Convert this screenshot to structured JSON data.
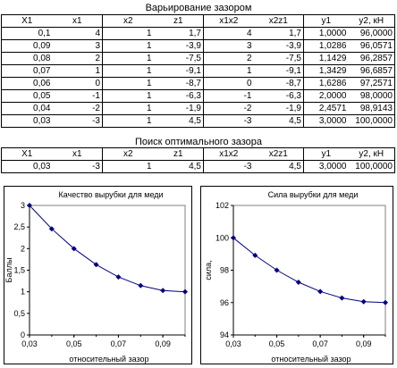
{
  "table1": {
    "title": "Варьирование зазором",
    "headers": [
      "X1",
      "x1",
      "x2",
      "z1",
      "x1x2",
      "x2z1",
      "y1",
      "y2, кН"
    ],
    "rows": [
      [
        "0,1",
        "4",
        "1",
        "1,7",
        "4",
        "1,7",
        "1,0000",
        "96,0000"
      ],
      [
        "0,09",
        "3",
        "1",
        "-3,9",
        "3",
        "-3,9",
        "1,0286",
        "96,0571"
      ],
      [
        "0,08",
        "2",
        "1",
        "-7,5",
        "2",
        "-7,5",
        "1,1429",
        "96,2857"
      ],
      [
        "0,07",
        "1",
        "1",
        "-9,1",
        "1",
        "-9,1",
        "1,3429",
        "96,6857"
      ],
      [
        "0,06",
        "0",
        "1",
        "-8,7",
        "0",
        "-8,7",
        "1,6286",
        "97,2571"
      ],
      [
        "0,05",
        "-1",
        "1",
        "-6,3",
        "-1",
        "-6,3",
        "2,0000",
        "98,0000"
      ],
      [
        "0,04",
        "-2",
        "1",
        "-1,9",
        "-2",
        "-1,9",
        "2,4571",
        "98,9143"
      ],
      [
        "0,03",
        "-3",
        "1",
        "4,5",
        "-3",
        "4,5",
        "3,0000",
        "100,0000"
      ]
    ]
  },
  "table2": {
    "title": "Поиск оптимального зазора",
    "headers": [
      "X1",
      "x1",
      "x2",
      "z1",
      "x1x2",
      "x2z1",
      "y1",
      "y2, кН"
    ],
    "rows": [
      [
        "0,03",
        "-3",
        "1",
        "4,5",
        "-3",
        "4,5",
        "3,0000",
        "100,0000"
      ]
    ]
  },
  "chart_data": [
    {
      "type": "line",
      "title": "Качество вырубки для меди",
      "xlabel": "относительный зазор",
      "ylabel": "Баллы",
      "xlim": [
        0.03,
        0.1
      ],
      "ylim": [
        0,
        3
      ],
      "x_ticks": [
        "0,03",
        "0,05",
        "0,07",
        "0,09"
      ],
      "y_ticks": [
        "0",
        "0,5",
        "1",
        "1,5",
        "2",
        "2,5",
        "3"
      ],
      "x": [
        0.03,
        0.04,
        0.05,
        0.06,
        0.07,
        0.08,
        0.09,
        0.1
      ],
      "values": [
        3.0,
        2.4571,
        2.0,
        1.6286,
        1.3429,
        1.1429,
        1.0286,
        1.0
      ],
      "color": "#000080",
      "grid": false,
      "legend": "none"
    },
    {
      "type": "line",
      "title": "Сила вырубки для меди",
      "xlabel": "относительный зазор",
      "ylabel": "сила,",
      "xlim": [
        0.03,
        0.1
      ],
      "ylim": [
        94,
        102
      ],
      "x_ticks": [
        "0,03",
        "0,05",
        "0,07",
        "0,09"
      ],
      "y_ticks": [
        "94",
        "96",
        "98",
        "100",
        "102"
      ],
      "x": [
        0.03,
        0.04,
        0.05,
        0.06,
        0.07,
        0.08,
        0.09,
        0.1
      ],
      "values": [
        100.0,
        98.9143,
        98.0,
        97.2571,
        96.6857,
        96.2857,
        96.0571,
        96.0
      ],
      "color": "#000080",
      "grid": false,
      "legend": "none"
    }
  ]
}
